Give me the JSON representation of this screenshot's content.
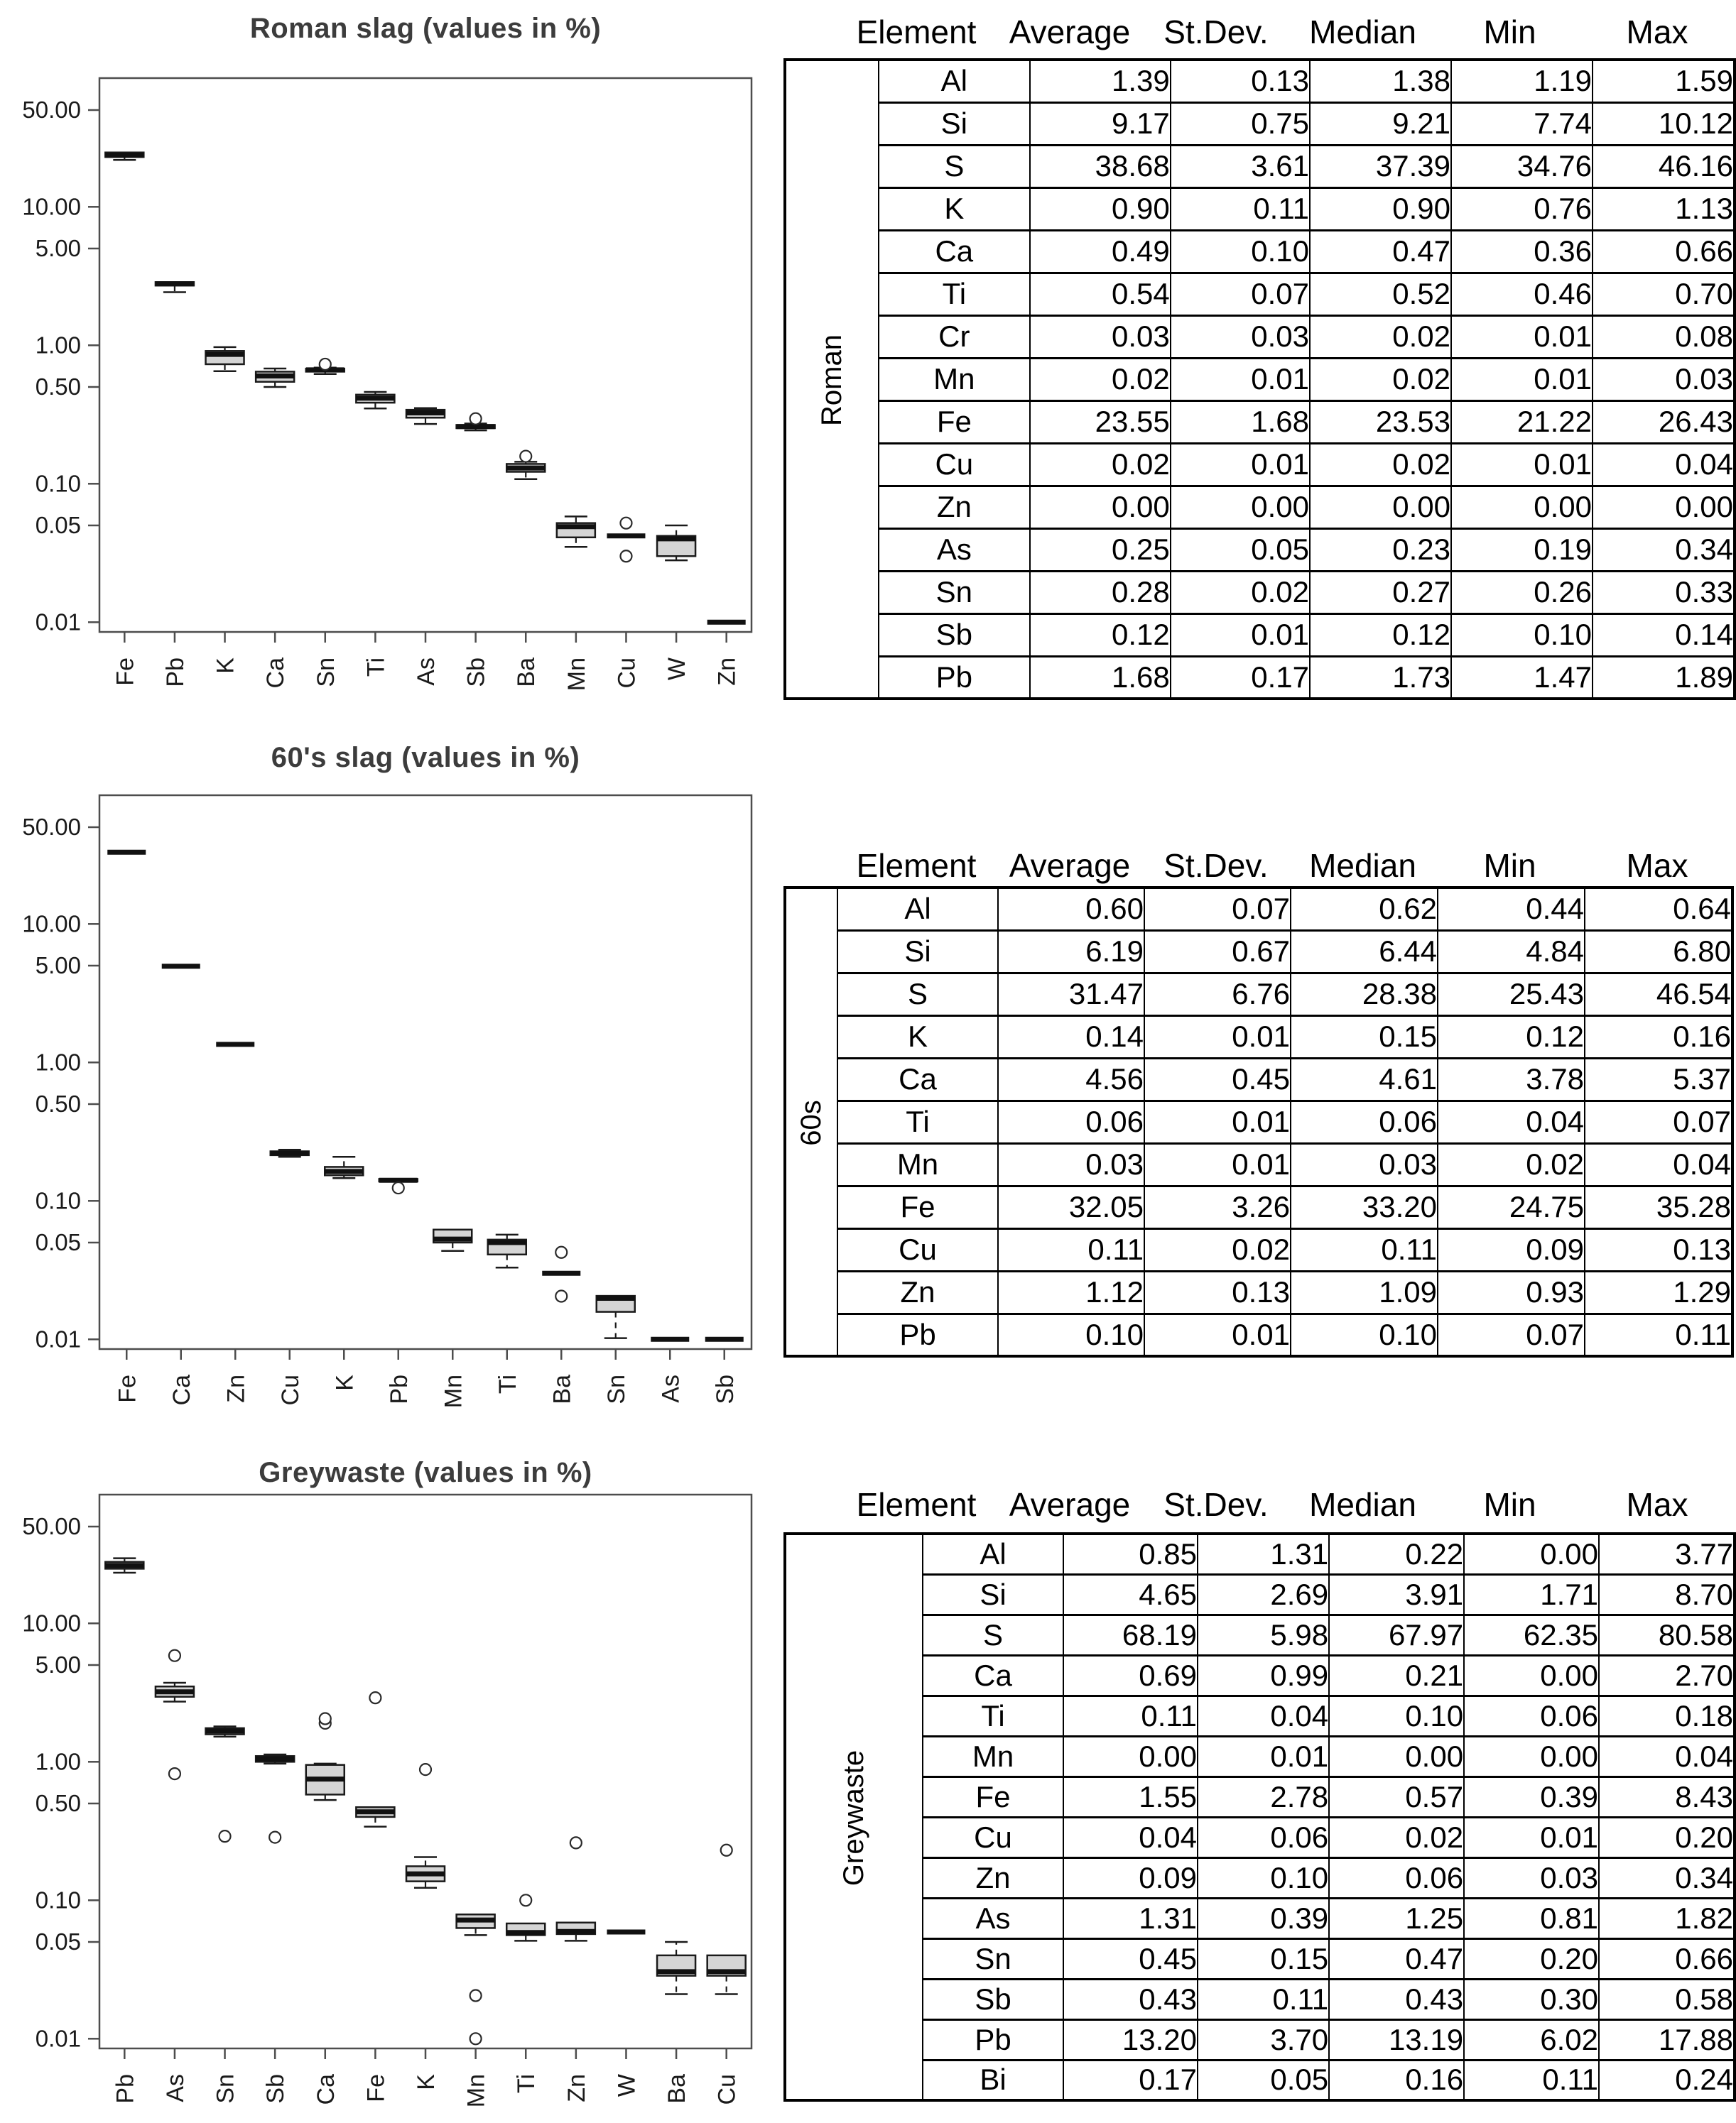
{
  "colors": {
    "background": "#ffffff",
    "axis": "#4d4d4d",
    "box_stroke": "#1a1a1a",
    "box_fill": "#d5d5d5",
    "median": "#111111",
    "title": "#3c3c3c",
    "table_border": "#000000",
    "text": "#000000"
  },
  "tables": [
    {
      "group": "Roman",
      "headers": [
        "Element",
        "Average",
        "St.Dev.",
        "Median",
        "Min",
        "Max"
      ],
      "rows": [
        [
          "Al",
          "1.39",
          "0.13",
          "1.38",
          "1.19",
          "1.59"
        ],
        [
          "Si",
          "9.17",
          "0.75",
          "9.21",
          "7.74",
          "10.12"
        ],
        [
          "S",
          "38.68",
          "3.61",
          "37.39",
          "34.76",
          "46.16"
        ],
        [
          "K",
          "0.90",
          "0.11",
          "0.90",
          "0.76",
          "1.13"
        ],
        [
          "Ca",
          "0.49",
          "0.10",
          "0.47",
          "0.36",
          "0.66"
        ],
        [
          "Ti",
          "0.54",
          "0.07",
          "0.52",
          "0.46",
          "0.70"
        ],
        [
          "Cr",
          "0.03",
          "0.03",
          "0.02",
          "0.01",
          "0.08"
        ],
        [
          "Mn",
          "0.02",
          "0.01",
          "0.02",
          "0.01",
          "0.03"
        ],
        [
          "Fe",
          "23.55",
          "1.68",
          "23.53",
          "21.22",
          "26.43"
        ],
        [
          "Cu",
          "0.02",
          "0.01",
          "0.02",
          "0.01",
          "0.04"
        ],
        [
          "Zn",
          "0.00",
          "0.00",
          "0.00",
          "0.00",
          "0.00"
        ],
        [
          "As",
          "0.25",
          "0.05",
          "0.23",
          "0.19",
          "0.34"
        ],
        [
          "Sn",
          "0.28",
          "0.02",
          "0.27",
          "0.26",
          "0.33"
        ],
        [
          "Sb",
          "0.12",
          "0.01",
          "0.12",
          "0.10",
          "0.14"
        ],
        [
          "Pb",
          "1.68",
          "0.17",
          "1.73",
          "1.47",
          "1.89"
        ]
      ]
    },
    {
      "group": "60s",
      "headers": [
        "Element",
        "Average",
        "St.Dev.",
        "Median",
        "Min",
        "Max"
      ],
      "rows": [
        [
          "Al",
          "0.60",
          "0.07",
          "0.62",
          "0.44",
          "0.64"
        ],
        [
          "Si",
          "6.19",
          "0.67",
          "6.44",
          "4.84",
          "6.80"
        ],
        [
          "S",
          "31.47",
          "6.76",
          "28.38",
          "25.43",
          "46.54"
        ],
        [
          "K",
          "0.14",
          "0.01",
          "0.15",
          "0.12",
          "0.16"
        ],
        [
          "Ca",
          "4.56",
          "0.45",
          "4.61",
          "3.78",
          "5.37"
        ],
        [
          "Ti",
          "0.06",
          "0.01",
          "0.06",
          "0.04",
          "0.07"
        ],
        [
          "Mn",
          "0.03",
          "0.01",
          "0.03",
          "0.02",
          "0.04"
        ],
        [
          "Fe",
          "32.05",
          "3.26",
          "33.20",
          "24.75",
          "35.28"
        ],
        [
          "Cu",
          "0.11",
          "0.02",
          "0.11",
          "0.09",
          "0.13"
        ],
        [
          "Zn",
          "1.12",
          "0.13",
          "1.09",
          "0.93",
          "1.29"
        ],
        [
          "Pb",
          "0.10",
          "0.01",
          "0.10",
          "0.07",
          "0.11"
        ]
      ]
    },
    {
      "group": "Greywaste",
      "headers": [
        "Element",
        "Average",
        "St.Dev.",
        "Median",
        "Min",
        "Max"
      ],
      "rows": [
        [
          "Al",
          "0.85",
          "1.31",
          "0.22",
          "0.00",
          "3.77"
        ],
        [
          "Si",
          "4.65",
          "2.69",
          "3.91",
          "1.71",
          "8.70"
        ],
        [
          "S",
          "68.19",
          "5.98",
          "67.97",
          "62.35",
          "80.58"
        ],
        [
          "Ca",
          "0.69",
          "0.99",
          "0.21",
          "0.00",
          "2.70"
        ],
        [
          "Ti",
          "0.11",
          "0.04",
          "0.10",
          "0.06",
          "0.18"
        ],
        [
          "Mn",
          "0.00",
          "0.01",
          "0.00",
          "0.00",
          "0.04"
        ],
        [
          "Fe",
          "1.55",
          "2.78",
          "0.57",
          "0.39",
          "8.43"
        ],
        [
          "Cu",
          "0.04",
          "0.06",
          "0.02",
          "0.01",
          "0.20"
        ],
        [
          "Zn",
          "0.09",
          "0.10",
          "0.06",
          "0.03",
          "0.34"
        ],
        [
          "As",
          "1.31",
          "0.39",
          "1.25",
          "0.81",
          "1.82"
        ],
        [
          "Sn",
          "0.45",
          "0.15",
          "0.47",
          "0.20",
          "0.66"
        ],
        [
          "Sb",
          "0.43",
          "0.11",
          "0.43",
          "0.30",
          "0.58"
        ],
        [
          "Pb",
          "13.20",
          "3.70",
          "13.19",
          "6.02",
          "17.88"
        ],
        [
          "Bi",
          "0.17",
          "0.05",
          "0.16",
          "0.11",
          "0.24"
        ]
      ]
    }
  ],
  "chart_data": [
    {
      "type": "box",
      "title": "Roman slag (values in %)",
      "xlabel": "",
      "ylabel": "",
      "log_scale": true,
      "ylim": [
        0.009,
        55
      ],
      "grid": false,
      "yticks": [
        50,
        10,
        5,
        1,
        0.5,
        0.1,
        0.05,
        0.01
      ],
      "ytick_labels": [
        "50.00",
        "10.00",
        "5.00",
        "1.00",
        "0.50",
        "0.10",
        "0.05",
        "0.01"
      ],
      "categories": [
        "Fe",
        "Pb",
        "K",
        "Ca",
        "Sn",
        "Ti",
        "As",
        "Sb",
        "Ba",
        "Mn",
        "Cu",
        "W",
        "Zn"
      ],
      "boxes": [
        {
          "label": "Fe",
          "lo": 21.8,
          "q1": 22.9,
          "med": 23.6,
          "q3": 24.7,
          "hi": 24.7,
          "outliers": []
        },
        {
          "label": "Pb",
          "lo": 2.42,
          "q1": 2.7,
          "med": 2.78,
          "q3": 2.86,
          "hi": 2.86,
          "outliers": []
        },
        {
          "label": "K",
          "lo": 0.65,
          "q1": 0.73,
          "med": 0.86,
          "q3": 0.91,
          "hi": 0.97,
          "outliers": []
        },
        {
          "label": "Ca",
          "lo": 0.5,
          "q1": 0.545,
          "med": 0.6,
          "q3": 0.645,
          "hi": 0.68,
          "outliers": []
        },
        {
          "label": "Sn",
          "lo": 0.62,
          "q1": 0.645,
          "med": 0.665,
          "q3": 0.678,
          "hi": 0.69,
          "outliers": [
            0.73
          ]
        },
        {
          "label": "Ti",
          "lo": 0.35,
          "q1": 0.385,
          "med": 0.415,
          "q3": 0.44,
          "hi": 0.46,
          "outliers": []
        },
        {
          "label": "As",
          "lo": 0.27,
          "q1": 0.3,
          "med": 0.325,
          "q3": 0.342,
          "hi": 0.352,
          "outliers": []
        },
        {
          "label": "Sb",
          "lo": 0.243,
          "q1": 0.252,
          "med": 0.259,
          "q3": 0.266,
          "hi": 0.272,
          "outliers": [
            0.295
          ]
        },
        {
          "label": "Ba",
          "lo": 0.108,
          "q1": 0.122,
          "med": 0.13,
          "q3": 0.139,
          "hi": 0.144,
          "outliers": [
            0.158
          ]
        },
        {
          "label": "Mn",
          "lo": 0.035,
          "q1": 0.041,
          "med": 0.049,
          "q3": 0.052,
          "hi": 0.058,
          "outliers": []
        },
        {
          "label": "Cu",
          "lo": 0.042,
          "q1": 0.042,
          "med": 0.042,
          "q3": 0.042,
          "hi": 0.042,
          "outliers": [
            0.052,
            0.03
          ]
        },
        {
          "label": "W",
          "lo": 0.028,
          "q1": 0.03,
          "med": 0.04,
          "q3": 0.042,
          "hi": 0.05,
          "outliers": []
        },
        {
          "label": "Zn",
          "lo": 0.01,
          "q1": 0.01,
          "med": 0.01,
          "q3": 0.01,
          "hi": 0.01,
          "outliers": []
        }
      ]
    },
    {
      "type": "box",
      "title": "60's slag (values in %)",
      "xlabel": "",
      "ylabel": "",
      "log_scale": true,
      "ylim": [
        0.009,
        55
      ],
      "grid": false,
      "yticks": [
        50,
        10,
        5,
        1,
        0.5,
        0.1,
        0.05,
        0.01
      ],
      "ytick_labels": [
        "50.00",
        "10.00",
        "5.00",
        "1.00",
        "0.50",
        "0.10",
        "0.05",
        "0.01"
      ],
      "categories": [
        "Fe",
        "Ca",
        "Zn",
        "Cu",
        "K",
        "Pb",
        "Mn",
        "Ti",
        "Ba",
        "Sn",
        "As",
        "Sb"
      ],
      "boxes": [
        {
          "label": "Fe",
          "lo": 33,
          "q1": 33,
          "med": 33,
          "q3": 33,
          "hi": 33,
          "outliers": []
        },
        {
          "label": "Ca",
          "lo": 4.95,
          "q1": 4.95,
          "med": 4.95,
          "q3": 4.95,
          "hi": 4.95,
          "outliers": []
        },
        {
          "label": "Zn",
          "lo": 1.35,
          "q1": 1.35,
          "med": 1.35,
          "q3": 1.35,
          "hi": 1.35,
          "outliers": []
        },
        {
          "label": "Cu",
          "lo": 0.208,
          "q1": 0.214,
          "med": 0.221,
          "q3": 0.228,
          "hi": 0.234,
          "outliers": []
        },
        {
          "label": "K",
          "lo": 0.146,
          "q1": 0.153,
          "med": 0.163,
          "q3": 0.176,
          "hi": 0.208,
          "outliers": []
        },
        {
          "label": "Pb",
          "lo": 0.138,
          "q1": 0.138,
          "med": 0.141,
          "q3": 0.144,
          "hi": 0.144,
          "outliers": [
            0.124
          ]
        },
        {
          "label": "Mn",
          "lo": 0.0435,
          "q1": 0.05,
          "med": 0.053,
          "q3": 0.062,
          "hi": 0.062,
          "outliers": []
        },
        {
          "label": "Ti",
          "lo": 0.033,
          "q1": 0.041,
          "med": 0.05,
          "q3": 0.0525,
          "hi": 0.057,
          "outliers": []
        },
        {
          "label": "Ba",
          "lo": 0.03,
          "q1": 0.03,
          "med": 0.03,
          "q3": 0.03,
          "hi": 0.03,
          "outliers": [
            0.0425,
            0.0205
          ]
        },
        {
          "label": "Sn",
          "lo": 0.0102,
          "q1": 0.0158,
          "med": 0.0198,
          "q3": 0.0206,
          "hi": 0.0206,
          "outliers": []
        },
        {
          "label": "As",
          "lo": 0.01,
          "q1": 0.01,
          "med": 0.01,
          "q3": 0.01,
          "hi": 0.01,
          "outliers": []
        },
        {
          "label": "Sb",
          "lo": 0.01,
          "q1": 0.01,
          "med": 0.01,
          "q3": 0.01,
          "hi": 0.01,
          "outliers": []
        }
      ]
    },
    {
      "type": "box",
      "title": "Greywaste (values in %)",
      "xlabel": "",
      "ylabel": "",
      "log_scale": true,
      "ylim": [
        0.009,
        55
      ],
      "grid": false,
      "yticks": [
        50,
        10,
        5,
        1,
        0.5,
        0.1,
        0.05,
        0.01
      ],
      "ytick_labels": [
        "50.00",
        "10.00",
        "5.00",
        "1.00",
        "0.50",
        "0.10",
        "0.05",
        "0.01"
      ],
      "categories": [
        "Pb",
        "As",
        "Sn",
        "Sb",
        "Ca",
        "Fe",
        "K",
        "Mn",
        "Ti",
        "Zn",
        "W",
        "Ba",
        "Cu"
      ],
      "boxes": [
        {
          "label": "Pb",
          "lo": 23.2,
          "q1": 24.8,
          "med": 26.2,
          "q3": 27.8,
          "hi": 29.5,
          "outliers": []
        },
        {
          "label": "As",
          "lo": 2.72,
          "q1": 2.95,
          "med": 3.2,
          "q3": 3.5,
          "hi": 3.72,
          "outliers": [
            5.85,
            0.82
          ]
        },
        {
          "label": "Sn",
          "lo": 1.52,
          "q1": 1.58,
          "med": 1.67,
          "q3": 1.75,
          "hi": 1.8,
          "outliers": [
            0.29
          ]
        },
        {
          "label": "Sb",
          "lo": 0.97,
          "q1": 1.0,
          "med": 1.05,
          "q3": 1.1,
          "hi": 1.13,
          "outliers": [
            0.285
          ]
        },
        {
          "label": "Ca",
          "lo": 0.53,
          "q1": 0.58,
          "med": 0.75,
          "q3": 0.95,
          "hi": 0.97,
          "outliers": [
            1.9,
            2.05
          ]
        },
        {
          "label": "Fe",
          "lo": 0.34,
          "q1": 0.4,
          "med": 0.435,
          "q3": 0.47,
          "hi": 0.47,
          "outliers": [
            2.9
          ]
        },
        {
          "label": "K",
          "lo": 0.123,
          "q1": 0.137,
          "med": 0.155,
          "q3": 0.176,
          "hi": 0.205,
          "outliers": [
            0.88
          ]
        },
        {
          "label": "Mn",
          "lo": 0.056,
          "q1": 0.063,
          "med": 0.072,
          "q3": 0.079,
          "hi": 0.079,
          "outliers": [
            0.0205,
            0.01
          ]
        },
        {
          "label": "Ti",
          "lo": 0.051,
          "q1": 0.056,
          "med": 0.0585,
          "q3": 0.068,
          "hi": 0.068,
          "outliers": [
            0.1
          ]
        },
        {
          "label": "Zn",
          "lo": 0.051,
          "q1": 0.057,
          "med": 0.0595,
          "q3": 0.069,
          "hi": 0.069,
          "outliers": [
            0.26
          ]
        },
        {
          "label": "W",
          "lo": 0.059,
          "q1": 0.059,
          "med": 0.059,
          "q3": 0.059,
          "hi": 0.059,
          "outliers": []
        },
        {
          "label": "Ba",
          "lo": 0.021,
          "q1": 0.0285,
          "med": 0.0305,
          "q3": 0.04,
          "hi": 0.05,
          "outliers": []
        },
        {
          "label": "Cu",
          "lo": 0.021,
          "q1": 0.0285,
          "med": 0.0305,
          "q3": 0.04,
          "hi": 0.04,
          "outliers": [
            0.23
          ]
        }
      ]
    }
  ]
}
